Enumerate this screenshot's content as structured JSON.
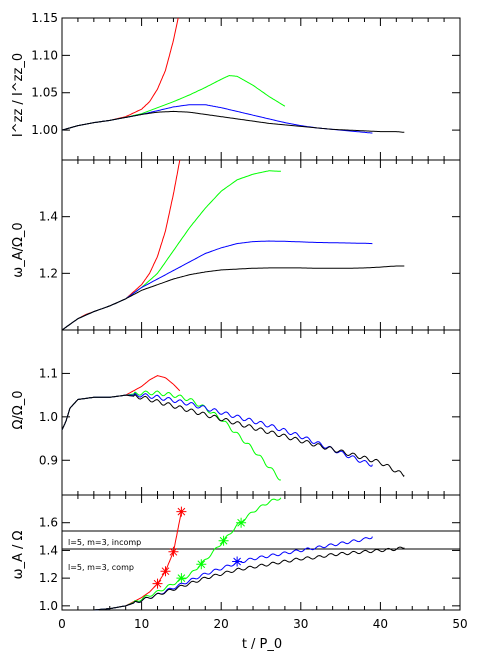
{
  "chart_data": [
    {
      "type": "line",
      "ylabel": "I^zz / I^zz_0",
      "xlim": [
        0,
        50
      ],
      "ylim": [
        0.96,
        1.15
      ],
      "yticks": [
        "1.00",
        "1.05",
        "1.10",
        "1.15"
      ],
      "ytick_values": [
        1.0,
        1.05,
        1.1,
        1.15
      ],
      "series": [
        {
          "color": "#ff0000",
          "x": [
            0,
            2,
            4,
            6,
            8,
            10,
            11,
            12,
            13,
            14,
            14.6
          ],
          "y": [
            1.0,
            1.006,
            1.01,
            1.013,
            1.018,
            1.028,
            1.038,
            1.055,
            1.08,
            1.12,
            1.15
          ]
        },
        {
          "color": "#00ff00",
          "x": [
            0,
            2,
            4,
            6,
            8,
            10,
            12,
            14,
            16,
            18,
            20,
            21,
            22,
            24,
            26,
            28
          ],
          "y": [
            1.0,
            1.006,
            1.01,
            1.013,
            1.017,
            1.022,
            1.03,
            1.038,
            1.047,
            1.057,
            1.068,
            1.073,
            1.072,
            1.06,
            1.045,
            1.032
          ]
        },
        {
          "color": "#0000ff",
          "x": [
            0,
            2,
            4,
            6,
            8,
            10,
            12,
            14,
            16,
            18,
            20,
            22,
            24,
            26,
            28,
            30,
            32,
            34,
            36,
            38,
            39
          ],
          "y": [
            1.0,
            1.006,
            1.01,
            1.013,
            1.017,
            1.021,
            1.026,
            1.031,
            1.034,
            1.034,
            1.03,
            1.025,
            1.02,
            1.015,
            1.01,
            1.006,
            1.003,
            1.001,
            0.999,
            0.997,
            0.996
          ]
        },
        {
          "color": "#000000",
          "x": [
            0,
            2,
            4,
            6,
            8,
            10,
            12,
            14,
            16,
            18,
            20,
            22,
            24,
            26,
            28,
            30,
            32,
            34,
            36,
            38,
            40,
            42,
            43
          ],
          "y": [
            1.0,
            1.006,
            1.01,
            1.013,
            1.017,
            1.021,
            1.024,
            1.025,
            1.024,
            1.021,
            1.018,
            1.015,
            1.012,
            1.009,
            1.007,
            1.005,
            1.003,
            1.001,
            1.0,
            0.999,
            0.998,
            0.998,
            0.997
          ]
        }
      ]
    },
    {
      "type": "line",
      "ylabel": "ω_A/Ω_0",
      "xlim": [
        0,
        50
      ],
      "ylim": [
        1.0,
        1.6
      ],
      "yticks": [
        "1.2",
        "1.4"
      ],
      "ytick_values": [
        1.2,
        1.4
      ],
      "series": [
        {
          "color": "#ff0000",
          "x": [
            0,
            1,
            2,
            3,
            4,
            6,
            8,
            10,
            11,
            12,
            13,
            14,
            14.8
          ],
          "y": [
            1.0,
            1.02,
            1.04,
            1.055,
            1.065,
            1.085,
            1.11,
            1.16,
            1.2,
            1.26,
            1.35,
            1.48,
            1.6
          ]
        },
        {
          "color": "#00ff00",
          "x": [
            0,
            2,
            4,
            6,
            8,
            10,
            12,
            14,
            16,
            18,
            20,
            22,
            24,
            26,
            27.5
          ],
          "y": [
            1.0,
            1.04,
            1.065,
            1.085,
            1.11,
            1.15,
            1.2,
            1.28,
            1.36,
            1.43,
            1.49,
            1.53,
            1.55,
            1.562,
            1.56
          ]
        },
        {
          "color": "#0000ff",
          "x": [
            0,
            2,
            4,
            6,
            8,
            10,
            12,
            14,
            16,
            18,
            20,
            22,
            24,
            26,
            28,
            30,
            32,
            34,
            36,
            38,
            39
          ],
          "y": [
            1.0,
            1.04,
            1.065,
            1.085,
            1.11,
            1.15,
            1.18,
            1.21,
            1.24,
            1.27,
            1.29,
            1.305,
            1.312,
            1.314,
            1.313,
            1.311,
            1.309,
            1.308,
            1.307,
            1.306,
            1.305
          ]
        },
        {
          "color": "#000000",
          "x": [
            0,
            2,
            4,
            6,
            8,
            10,
            12,
            14,
            16,
            18,
            20,
            22,
            24,
            26,
            28,
            30,
            32,
            34,
            36,
            38,
            40,
            42,
            43
          ],
          "y": [
            1.0,
            1.04,
            1.065,
            1.085,
            1.11,
            1.14,
            1.16,
            1.18,
            1.195,
            1.205,
            1.212,
            1.215,
            1.218,
            1.219,
            1.219,
            1.219,
            1.218,
            1.218,
            1.218,
            1.219,
            1.222,
            1.226,
            1.226
          ]
        }
      ]
    },
    {
      "type": "line",
      "ylabel": "Ω/Ω_0",
      "xlim": [
        0,
        50
      ],
      "ylim": [
        0.82,
        1.2
      ],
      "yticks": [
        "0.9",
        "1.0",
        "1.1"
      ],
      "ytick_values": [
        0.9,
        1.0,
        1.1
      ],
      "series": [
        {
          "color": "#ff0000",
          "x": [
            0,
            0.5,
            1,
            2,
            4,
            6,
            8,
            10,
            11,
            12,
            13,
            14,
            14.8
          ],
          "y": [
            0.97,
            0.99,
            1.02,
            1.04,
            1.045,
            1.045,
            1.05,
            1.07,
            1.085,
            1.095,
            1.09,
            1.075,
            1.06
          ]
        },
        {
          "color": "#00ff00",
          "x": [
            0,
            0.5,
            1,
            2,
            4,
            6,
            8,
            10,
            12,
            14,
            16,
            18,
            20,
            22,
            24,
            26,
            27.5
          ],
          "y": [
            0.97,
            0.99,
            1.02,
            1.04,
            1.045,
            1.045,
            1.05,
            1.055,
            1.055,
            1.05,
            1.04,
            1.02,
            0.995,
            0.96,
            0.925,
            0.885,
            0.855
          ]
        },
        {
          "color": "#0000ff",
          "x": [
            0,
            0.5,
            1,
            2,
            4,
            6,
            8,
            10,
            12,
            14,
            16,
            18,
            20,
            22,
            24,
            26,
            28,
            30,
            32,
            34,
            36,
            38,
            39
          ],
          "y": [
            0.97,
            0.99,
            1.02,
            1.04,
            1.045,
            1.045,
            1.05,
            1.05,
            1.045,
            1.038,
            1.03,
            1.02,
            1.01,
            1.0,
            0.99,
            0.98,
            0.968,
            0.955,
            0.94,
            0.925,
            0.91,
            0.895,
            0.89
          ]
        },
        {
          "color": "#000000",
          "x": [
            0,
            0.5,
            1,
            2,
            4,
            6,
            8,
            10,
            12,
            14,
            16,
            18,
            20,
            22,
            24,
            26,
            28,
            30,
            32,
            34,
            36,
            38,
            40,
            42,
            43
          ],
          "y": [
            0.97,
            0.99,
            1.02,
            1.04,
            1.045,
            1.045,
            1.05,
            1.045,
            1.035,
            1.025,
            1.015,
            1.005,
            0.995,
            0.985,
            0.975,
            0.965,
            0.955,
            0.945,
            0.935,
            0.925,
            0.915,
            0.905,
            0.895,
            0.875,
            0.865
          ]
        }
      ],
      "oscillate": [
        false,
        true,
        true,
        true
      ]
    },
    {
      "type": "line",
      "ylabel": "ω_A / Ω",
      "xlabel": "t / P_0",
      "xlim": [
        0,
        50
      ],
      "ylim": [
        0.97,
        1.8
      ],
      "yticks": [
        "1.0",
        "1.2",
        "1.4",
        "1.6"
      ],
      "ytick_values": [
        1.0,
        1.2,
        1.4,
        1.6
      ],
      "xticks": [
        "0",
        "10",
        "20",
        "30",
        "40",
        "50"
      ],
      "xtick_values": [
        0,
        10,
        20,
        30,
        40,
        50
      ],
      "hlines": [
        1.54,
        1.41
      ],
      "annotations": [
        "l=5, m=3, incomp",
        "l=5, m=3, comp"
      ],
      "series": [
        {
          "color": "#ff0000",
          "x": [
            0,
            4,
            6,
            8,
            9,
            10,
            11,
            12,
            13,
            14,
            15
          ],
          "y": [
            0.97,
            0.97,
            0.98,
            1.0,
            1.03,
            1.06,
            1.1,
            1.16,
            1.25,
            1.39,
            1.68
          ],
          "markers": [
            [
              12,
              1.16
            ],
            [
              13,
              1.25
            ],
            [
              14,
              1.39
            ],
            [
              15,
              1.68
            ]
          ]
        },
        {
          "color": "#00ff00",
          "x": [
            0,
            4,
            6,
            8,
            10,
            12,
            14,
            16,
            18,
            20,
            22,
            24,
            26,
            27.5
          ],
          "y": [
            0.97,
            0.97,
            0.98,
            1.0,
            1.05,
            1.1,
            1.16,
            1.22,
            1.33,
            1.45,
            1.58,
            1.68,
            1.75,
            1.78
          ],
          "markers": [
            [
              15,
              1.2
            ],
            [
              17.5,
              1.3
            ],
            [
              20.3,
              1.47
            ],
            [
              22.5,
              1.6
            ]
          ]
        },
        {
          "color": "#0000ff",
          "x": [
            0,
            4,
            6,
            8,
            10,
            12,
            14,
            16,
            18,
            20,
            22,
            24,
            26,
            28,
            30,
            32,
            34,
            36,
            38,
            39
          ],
          "y": [
            0.97,
            0.97,
            0.98,
            1.0,
            1.04,
            1.08,
            1.13,
            1.18,
            1.23,
            1.27,
            1.31,
            1.34,
            1.36,
            1.38,
            1.4,
            1.42,
            1.44,
            1.46,
            1.48,
            1.5
          ],
          "markers": [
            [
              22,
              1.32
            ]
          ]
        },
        {
          "color": "#000000",
          "x": [
            0,
            4,
            6,
            8,
            10,
            12,
            14,
            16,
            18,
            20,
            22,
            24,
            26,
            28,
            30,
            32,
            34,
            36,
            38,
            40,
            42,
            43
          ],
          "y": [
            0.97,
            0.97,
            0.98,
            1.0,
            1.04,
            1.08,
            1.12,
            1.16,
            1.2,
            1.23,
            1.26,
            1.28,
            1.3,
            1.32,
            1.34,
            1.35,
            1.37,
            1.38,
            1.39,
            1.4,
            1.41,
            1.42
          ],
          "markers": []
        }
      ],
      "oscillate": [
        false,
        true,
        true,
        true
      ]
    }
  ]
}
